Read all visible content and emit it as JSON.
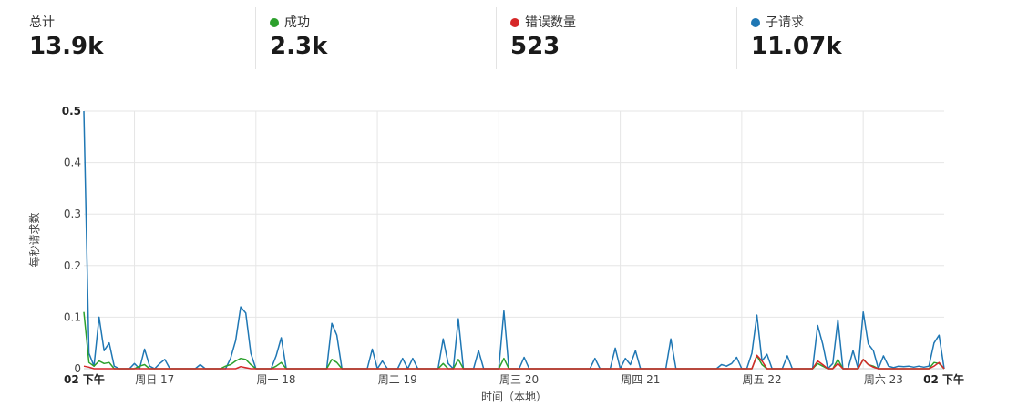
{
  "stats": [
    {
      "label": "总计",
      "value": "13.9k",
      "color": ""
    },
    {
      "label": "成功",
      "value": "2.3k",
      "color": "#2ca02c"
    },
    {
      "label": "错误数量",
      "value": "523",
      "color": "#d62728"
    },
    {
      "label": "子请求",
      "value": "11.07k",
      "color": "#1f77b4"
    }
  ],
  "chart_data": {
    "type": "line",
    "xlabel": "时间（本地）",
    "ylabel": "每秒请求数",
    "ylim": [
      0,
      0.5
    ],
    "yticks": [
      "0",
      "0.1",
      "0.2",
      "0.3",
      "0.4",
      "0.5"
    ],
    "xticks": [
      "02 下午",
      "周日 17",
      "周一 18",
      "周二 19",
      "周三 20",
      "周四 21",
      "周五 22",
      "周六 23",
      "02 下午"
    ],
    "x_unit": "hours since 02 下午 (Saturday 16)",
    "grid": true,
    "series": [
      {
        "name": "子请求",
        "color": "#1f77b4",
        "points": [
          [
            0,
            0.5
          ],
          [
            1,
            0.03
          ],
          [
            2,
            0.005
          ],
          [
            3,
            0.1
          ],
          [
            4,
            0.035
          ],
          [
            5,
            0.05
          ],
          [
            6,
            0.005
          ],
          [
            7,
            0.0
          ],
          [
            10,
            0.01
          ],
          [
            12,
            0.038
          ],
          [
            13,
            0.005
          ],
          [
            15,
            0.01
          ],
          [
            16,
            0.018
          ],
          [
            17,
            0.0
          ],
          [
            22,
            0.0
          ],
          [
            23,
            0.008
          ],
          [
            24,
            0.0
          ],
          [
            28,
            0.0
          ],
          [
            29,
            0.02
          ],
          [
            30,
            0.055
          ],
          [
            31,
            0.12
          ],
          [
            32,
            0.108
          ],
          [
            33,
            0.03
          ],
          [
            34,
            0.0
          ],
          [
            38,
            0.025
          ],
          [
            39,
            0.06
          ],
          [
            40,
            0.0
          ],
          [
            48,
            0.0
          ],
          [
            49,
            0.088
          ],
          [
            50,
            0.065
          ],
          [
            51,
            0.0
          ],
          [
            56,
            0.0
          ],
          [
            57,
            0.038
          ],
          [
            58,
            0.0
          ],
          [
            59,
            0.015
          ],
          [
            60,
            0.0
          ],
          [
            62,
            0.0
          ],
          [
            63,
            0.02
          ],
          [
            64,
            0.0
          ],
          [
            65,
            0.02
          ],
          [
            66,
            0.0
          ],
          [
            70,
            0.0
          ],
          [
            71,
            0.058
          ],
          [
            72,
            0.01
          ],
          [
            73,
            0.0
          ],
          [
            74,
            0.097
          ],
          [
            75,
            0.0
          ],
          [
            77,
            0.0
          ],
          [
            78,
            0.035
          ],
          [
            79,
            0.0
          ],
          [
            82,
            0.0
          ],
          [
            83,
            0.112
          ],
          [
            84,
            0.0
          ],
          [
            86,
            0.0
          ],
          [
            87,
            0.022
          ],
          [
            88,
            0.0
          ],
          [
            100,
            0.0
          ],
          [
            101,
            0.02
          ],
          [
            102,
            0.0
          ],
          [
            104,
            0.0
          ],
          [
            105,
            0.04
          ],
          [
            106,
            0.0
          ],
          [
            107,
            0.02
          ],
          [
            108,
            0.008
          ],
          [
            109,
            0.035
          ],
          [
            110,
            0.0
          ],
          [
            115,
            0.0
          ],
          [
            116,
            0.058
          ],
          [
            117,
            0.0
          ],
          [
            125,
            0.0
          ],
          [
            126,
            0.008
          ],
          [
            127,
            0.005
          ],
          [
            128,
            0.01
          ],
          [
            129,
            0.022
          ],
          [
            130,
            0.0
          ],
          [
            131,
            0.0
          ],
          [
            132,
            0.03
          ],
          [
            133,
            0.104
          ],
          [
            134,
            0.015
          ],
          [
            135,
            0.028
          ],
          [
            136,
            0.0
          ],
          [
            138,
            0.0
          ],
          [
            139,
            0.025
          ],
          [
            140,
            0.0
          ],
          [
            144,
            0.0
          ],
          [
            145,
            0.084
          ],
          [
            146,
            0.048
          ],
          [
            147,
            0.0
          ],
          [
            148,
            0.01
          ],
          [
            149,
            0.095
          ],
          [
            150,
            0.0
          ],
          [
            151,
            0.0
          ],
          [
            152,
            0.035
          ],
          [
            153,
            0.0
          ],
          [
            154,
            0.11
          ],
          [
            155,
            0.048
          ],
          [
            156,
            0.035
          ],
          [
            157,
            0.0
          ],
          [
            158,
            0.025
          ],
          [
            159,
            0.005
          ],
          [
            160,
            0.002
          ],
          [
            161,
            0.005
          ],
          [
            162,
            0.004
          ],
          [
            163,
            0.005
          ],
          [
            164,
            0.003
          ],
          [
            165,
            0.005
          ],
          [
            166,
            0.003
          ],
          [
            167,
            0.005
          ],
          [
            168,
            0.05
          ],
          [
            169,
            0.065
          ],
          [
            170,
            0.0
          ]
        ]
      },
      {
        "name": "成功",
        "color": "#2ca02c",
        "points": [
          [
            0,
            0.11
          ],
          [
            1,
            0.012
          ],
          [
            2,
            0.005
          ],
          [
            3,
            0.015
          ],
          [
            4,
            0.01
          ],
          [
            5,
            0.012
          ],
          [
            6,
            0.0
          ],
          [
            11,
            0.005
          ],
          [
            12,
            0.008
          ],
          [
            13,
            0.0
          ],
          [
            28,
            0.005
          ],
          [
            29,
            0.008
          ],
          [
            30,
            0.015
          ],
          [
            31,
            0.02
          ],
          [
            32,
            0.018
          ],
          [
            33,
            0.008
          ],
          [
            34,
            0.0
          ],
          [
            38,
            0.005
          ],
          [
            39,
            0.012
          ],
          [
            40,
            0.0
          ],
          [
            48,
            0.0
          ],
          [
            49,
            0.018
          ],
          [
            50,
            0.012
          ],
          [
            51,
            0.0
          ],
          [
            70,
            0.0
          ],
          [
            71,
            0.01
          ],
          [
            72,
            0.0
          ],
          [
            73,
            0.0
          ],
          [
            74,
            0.018
          ],
          [
            75,
            0.0
          ],
          [
            82,
            0.0
          ],
          [
            83,
            0.02
          ],
          [
            84,
            0.0
          ],
          [
            133,
            0.025
          ],
          [
            134,
            0.008
          ],
          [
            135,
            0.0
          ],
          [
            145,
            0.01
          ],
          [
            146,
            0.005
          ],
          [
            147,
            0.0
          ],
          [
            149,
            0.018
          ],
          [
            150,
            0.0
          ],
          [
            154,
            0.018
          ],
          [
            155,
            0.008
          ],
          [
            156,
            0.005
          ],
          [
            157,
            0.0
          ],
          [
            168,
            0.012
          ],
          [
            169,
            0.01
          ],
          [
            170,
            0.0
          ]
        ]
      },
      {
        "name": "错误数量",
        "color": "#d62728",
        "points": [
          [
            0,
            0.005
          ],
          [
            1,
            0.003
          ],
          [
            2,
            0.0
          ],
          [
            30,
            0.0
          ],
          [
            31,
            0.004
          ],
          [
            32,
            0.002
          ],
          [
            33,
            0.0
          ],
          [
            132,
            0.0
          ],
          [
            133,
            0.026
          ],
          [
            134,
            0.015
          ],
          [
            135,
            0.0
          ],
          [
            144,
            0.0
          ],
          [
            145,
            0.015
          ],
          [
            146,
            0.008
          ],
          [
            147,
            0.0
          ],
          [
            148,
            0.0
          ],
          [
            149,
            0.01
          ],
          [
            150,
            0.0
          ],
          [
            153,
            0.0
          ],
          [
            154,
            0.018
          ],
          [
            155,
            0.008
          ],
          [
            156,
            0.003
          ],
          [
            157,
            0.0
          ],
          [
            167,
            0.0
          ],
          [
            168,
            0.005
          ],
          [
            169,
            0.012
          ],
          [
            170,
            0.0
          ]
        ]
      }
    ]
  }
}
